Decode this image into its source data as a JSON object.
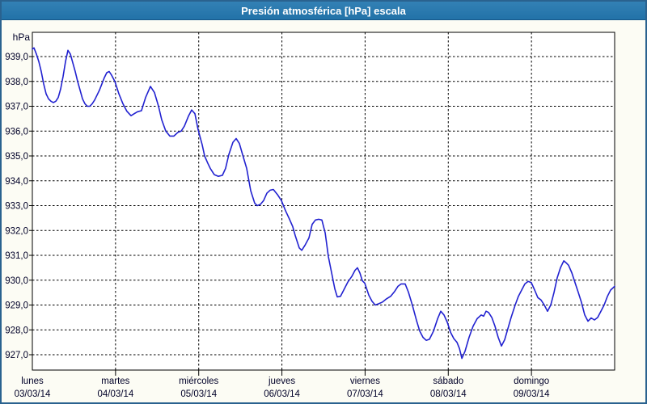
{
  "window": {
    "title": "Presión atmosférica [hPa] escala"
  },
  "colors": {
    "titlebar_bg": "#2272a8",
    "titlebar_bg_light": "#3381b5",
    "titlebar_border": "#15578a",
    "titlebar_text": "#ffffff",
    "window_border": "#2a628f",
    "window_bg": "#fcfcf4",
    "plot_bg": "#ffffff",
    "grid": "#000000",
    "axis": "#000000",
    "label": "#000028",
    "line": "#2222d0"
  },
  "chart_data": {
    "type": "line",
    "title": "Presión atmosférica [hPa] escala",
    "grid": "dashed",
    "legend": "none",
    "y_axis": {
      "unit_label": "hPa",
      "min": 926.4,
      "max": 940.0,
      "tick_start": 927.0,
      "tick_end": 939.0,
      "tick_step": 1.0,
      "decimal_separator": ","
    },
    "x_axis": {
      "span_days": 7,
      "days": [
        {
          "name": "lunes",
          "date": "03/03/14"
        },
        {
          "name": "martes",
          "date": "04/03/14"
        },
        {
          "name": "miércoles",
          "date": "05/03/14"
        },
        {
          "name": "jueves",
          "date": "06/03/14"
        },
        {
          "name": "viernes",
          "date": "07/03/14"
        },
        {
          "name": "sábado",
          "date": "08/03/14"
        },
        {
          "name": "domingo",
          "date": "09/03/14"
        }
      ]
    },
    "series": [
      {
        "name": "Presión atmosférica [hPa]",
        "units": "hPa",
        "points": [
          [
            0.0,
            939.3
          ],
          [
            0.019,
            939.35
          ],
          [
            0.049,
            939.1
          ],
          [
            0.078,
            938.8
          ],
          [
            0.107,
            938.4
          ],
          [
            0.136,
            937.9
          ],
          [
            0.165,
            937.5
          ],
          [
            0.194,
            937.3
          ],
          [
            0.224,
            937.2
          ],
          [
            0.253,
            937.15
          ],
          [
            0.282,
            937.2
          ],
          [
            0.311,
            937.35
          ],
          [
            0.34,
            937.7
          ],
          [
            0.369,
            938.2
          ],
          [
            0.399,
            938.8
          ],
          [
            0.428,
            939.25
          ],
          [
            0.457,
            939.1
          ],
          [
            0.486,
            938.75
          ],
          [
            0.515,
            938.4
          ],
          [
            0.544,
            938.0
          ],
          [
            0.574,
            937.65
          ],
          [
            0.603,
            937.3
          ],
          [
            0.632,
            937.1
          ],
          [
            0.661,
            937.0
          ],
          [
            0.69,
            937.0
          ],
          [
            0.719,
            937.1
          ],
          [
            0.749,
            937.25
          ],
          [
            0.778,
            937.45
          ],
          [
            0.807,
            937.65
          ],
          [
            0.836,
            937.9
          ],
          [
            0.865,
            938.15
          ],
          [
            0.894,
            938.35
          ],
          [
            0.924,
            938.4
          ],
          [
            0.953,
            938.25
          ],
          [
            0.992,
            938.0
          ],
          [
            1.04,
            937.5
          ],
          [
            1.089,
            937.1
          ],
          [
            1.137,
            936.8
          ],
          [
            1.186,
            936.62
          ],
          [
            1.225,
            936.7
          ],
          [
            1.264,
            936.78
          ],
          [
            1.312,
            936.82
          ],
          [
            1.361,
            937.35
          ],
          [
            1.419,
            937.8
          ],
          [
            1.468,
            937.55
          ],
          [
            1.517,
            937.0
          ],
          [
            1.556,
            936.45
          ],
          [
            1.604,
            936.0
          ],
          [
            1.653,
            935.8
          ],
          [
            1.701,
            935.8
          ],
          [
            1.75,
            935.95
          ],
          [
            1.789,
            936.0
          ],
          [
            1.828,
            936.2
          ],
          [
            1.876,
            936.6
          ],
          [
            1.915,
            936.85
          ],
          [
            1.954,
            936.7
          ],
          [
            1.993,
            936.05
          ],
          [
            2.042,
            935.45
          ],
          [
            2.071,
            935.0
          ],
          [
            2.11,
            934.7
          ],
          [
            2.139,
            934.5
          ],
          [
            2.187,
            934.25
          ],
          [
            2.236,
            934.18
          ],
          [
            2.285,
            934.22
          ],
          [
            2.323,
            934.5
          ],
          [
            2.362,
            935.05
          ],
          [
            2.411,
            935.55
          ],
          [
            2.45,
            935.7
          ],
          [
            2.489,
            935.5
          ],
          [
            2.528,
            935.05
          ],
          [
            2.576,
            934.5
          ],
          [
            2.625,
            933.6
          ],
          [
            2.673,
            933.1
          ],
          [
            2.703,
            933.0
          ],
          [
            2.741,
            933.05
          ],
          [
            2.78,
            933.2
          ],
          [
            2.819,
            933.5
          ],
          [
            2.858,
            933.62
          ],
          [
            2.897,
            933.65
          ],
          [
            2.946,
            933.45
          ],
          [
            2.994,
            933.2
          ],
          [
            3.043,
            932.8
          ],
          [
            3.092,
            932.45
          ],
          [
            3.131,
            932.15
          ],
          [
            3.16,
            931.8
          ],
          [
            3.208,
            931.3
          ],
          [
            3.238,
            931.2
          ],
          [
            3.276,
            931.4
          ],
          [
            3.325,
            931.7
          ],
          [
            3.364,
            932.25
          ],
          [
            3.403,
            932.42
          ],
          [
            3.442,
            932.45
          ],
          [
            3.481,
            932.42
          ],
          [
            3.52,
            931.9
          ],
          [
            3.558,
            930.95
          ],
          [
            3.597,
            930.3
          ],
          [
            3.636,
            929.65
          ],
          [
            3.665,
            929.33
          ],
          [
            3.704,
            929.35
          ],
          [
            3.743,
            929.6
          ],
          [
            3.792,
            929.92
          ],
          [
            3.84,
            930.15
          ],
          [
            3.879,
            930.4
          ],
          [
            3.908,
            930.5
          ],
          [
            3.938,
            930.28
          ],
          [
            3.967,
            929.98
          ],
          [
            3.996,
            929.88
          ],
          [
            4.044,
            929.4
          ],
          [
            4.083,
            929.15
          ],
          [
            4.122,
            929.0
          ],
          [
            4.161,
            929.05
          ],
          [
            4.21,
            929.12
          ],
          [
            4.258,
            929.25
          ],
          [
            4.307,
            929.35
          ],
          [
            4.356,
            929.55
          ],
          [
            4.394,
            929.75
          ],
          [
            4.433,
            929.85
          ],
          [
            4.482,
            929.85
          ],
          [
            4.521,
            929.52
          ],
          [
            4.569,
            928.98
          ],
          [
            4.618,
            928.38
          ],
          [
            4.657,
            927.95
          ],
          [
            4.696,
            927.7
          ],
          [
            4.735,
            927.58
          ],
          [
            4.774,
            927.62
          ],
          [
            4.822,
            927.95
          ],
          [
            4.871,
            928.44
          ],
          [
            4.91,
            928.75
          ],
          [
            4.949,
            928.6
          ],
          [
            4.988,
            928.3
          ],
          [
            5.027,
            927.9
          ],
          [
            5.066,
            927.65
          ],
          [
            5.104,
            927.5
          ],
          [
            5.134,
            927.25
          ],
          [
            5.163,
            926.85
          ],
          [
            5.202,
            927.15
          ],
          [
            5.25,
            927.7
          ],
          [
            5.299,
            928.15
          ],
          [
            5.347,
            928.45
          ],
          [
            5.396,
            928.6
          ],
          [
            5.425,
            928.55
          ],
          [
            5.454,
            928.75
          ],
          [
            5.484,
            928.7
          ],
          [
            5.523,
            928.5
          ],
          [
            5.561,
            928.15
          ],
          [
            5.6,
            927.7
          ],
          [
            5.639,
            927.35
          ],
          [
            5.678,
            927.6
          ],
          [
            5.717,
            928.05
          ],
          [
            5.756,
            928.5
          ],
          [
            5.804,
            929.0
          ],
          [
            5.843,
            929.35
          ],
          [
            5.882,
            929.6
          ],
          [
            5.921,
            929.85
          ],
          [
            5.96,
            929.95
          ],
          [
            5.999,
            929.9
          ],
          [
            6.038,
            929.6
          ],
          [
            6.076,
            929.3
          ],
          [
            6.115,
            929.2
          ],
          [
            6.154,
            929.0
          ],
          [
            6.193,
            928.75
          ],
          [
            6.232,
            929.0
          ],
          [
            6.271,
            929.5
          ],
          [
            6.31,
            930.1
          ],
          [
            6.349,
            930.5
          ],
          [
            6.388,
            930.78
          ],
          [
            6.417,
            930.7
          ],
          [
            6.446,
            930.6
          ],
          [
            6.485,
            930.3
          ],
          [
            6.524,
            929.9
          ],
          [
            6.563,
            929.5
          ],
          [
            6.601,
            929.1
          ],
          [
            6.64,
            928.6
          ],
          [
            6.679,
            928.35
          ],
          [
            6.718,
            928.48
          ],
          [
            6.757,
            928.4
          ],
          [
            6.796,
            928.5
          ],
          [
            6.835,
            928.75
          ],
          [
            6.874,
            929.0
          ],
          [
            6.913,
            929.35
          ],
          [
            6.951,
            929.6
          ],
          [
            7.0,
            929.75
          ]
        ]
      }
    ]
  }
}
